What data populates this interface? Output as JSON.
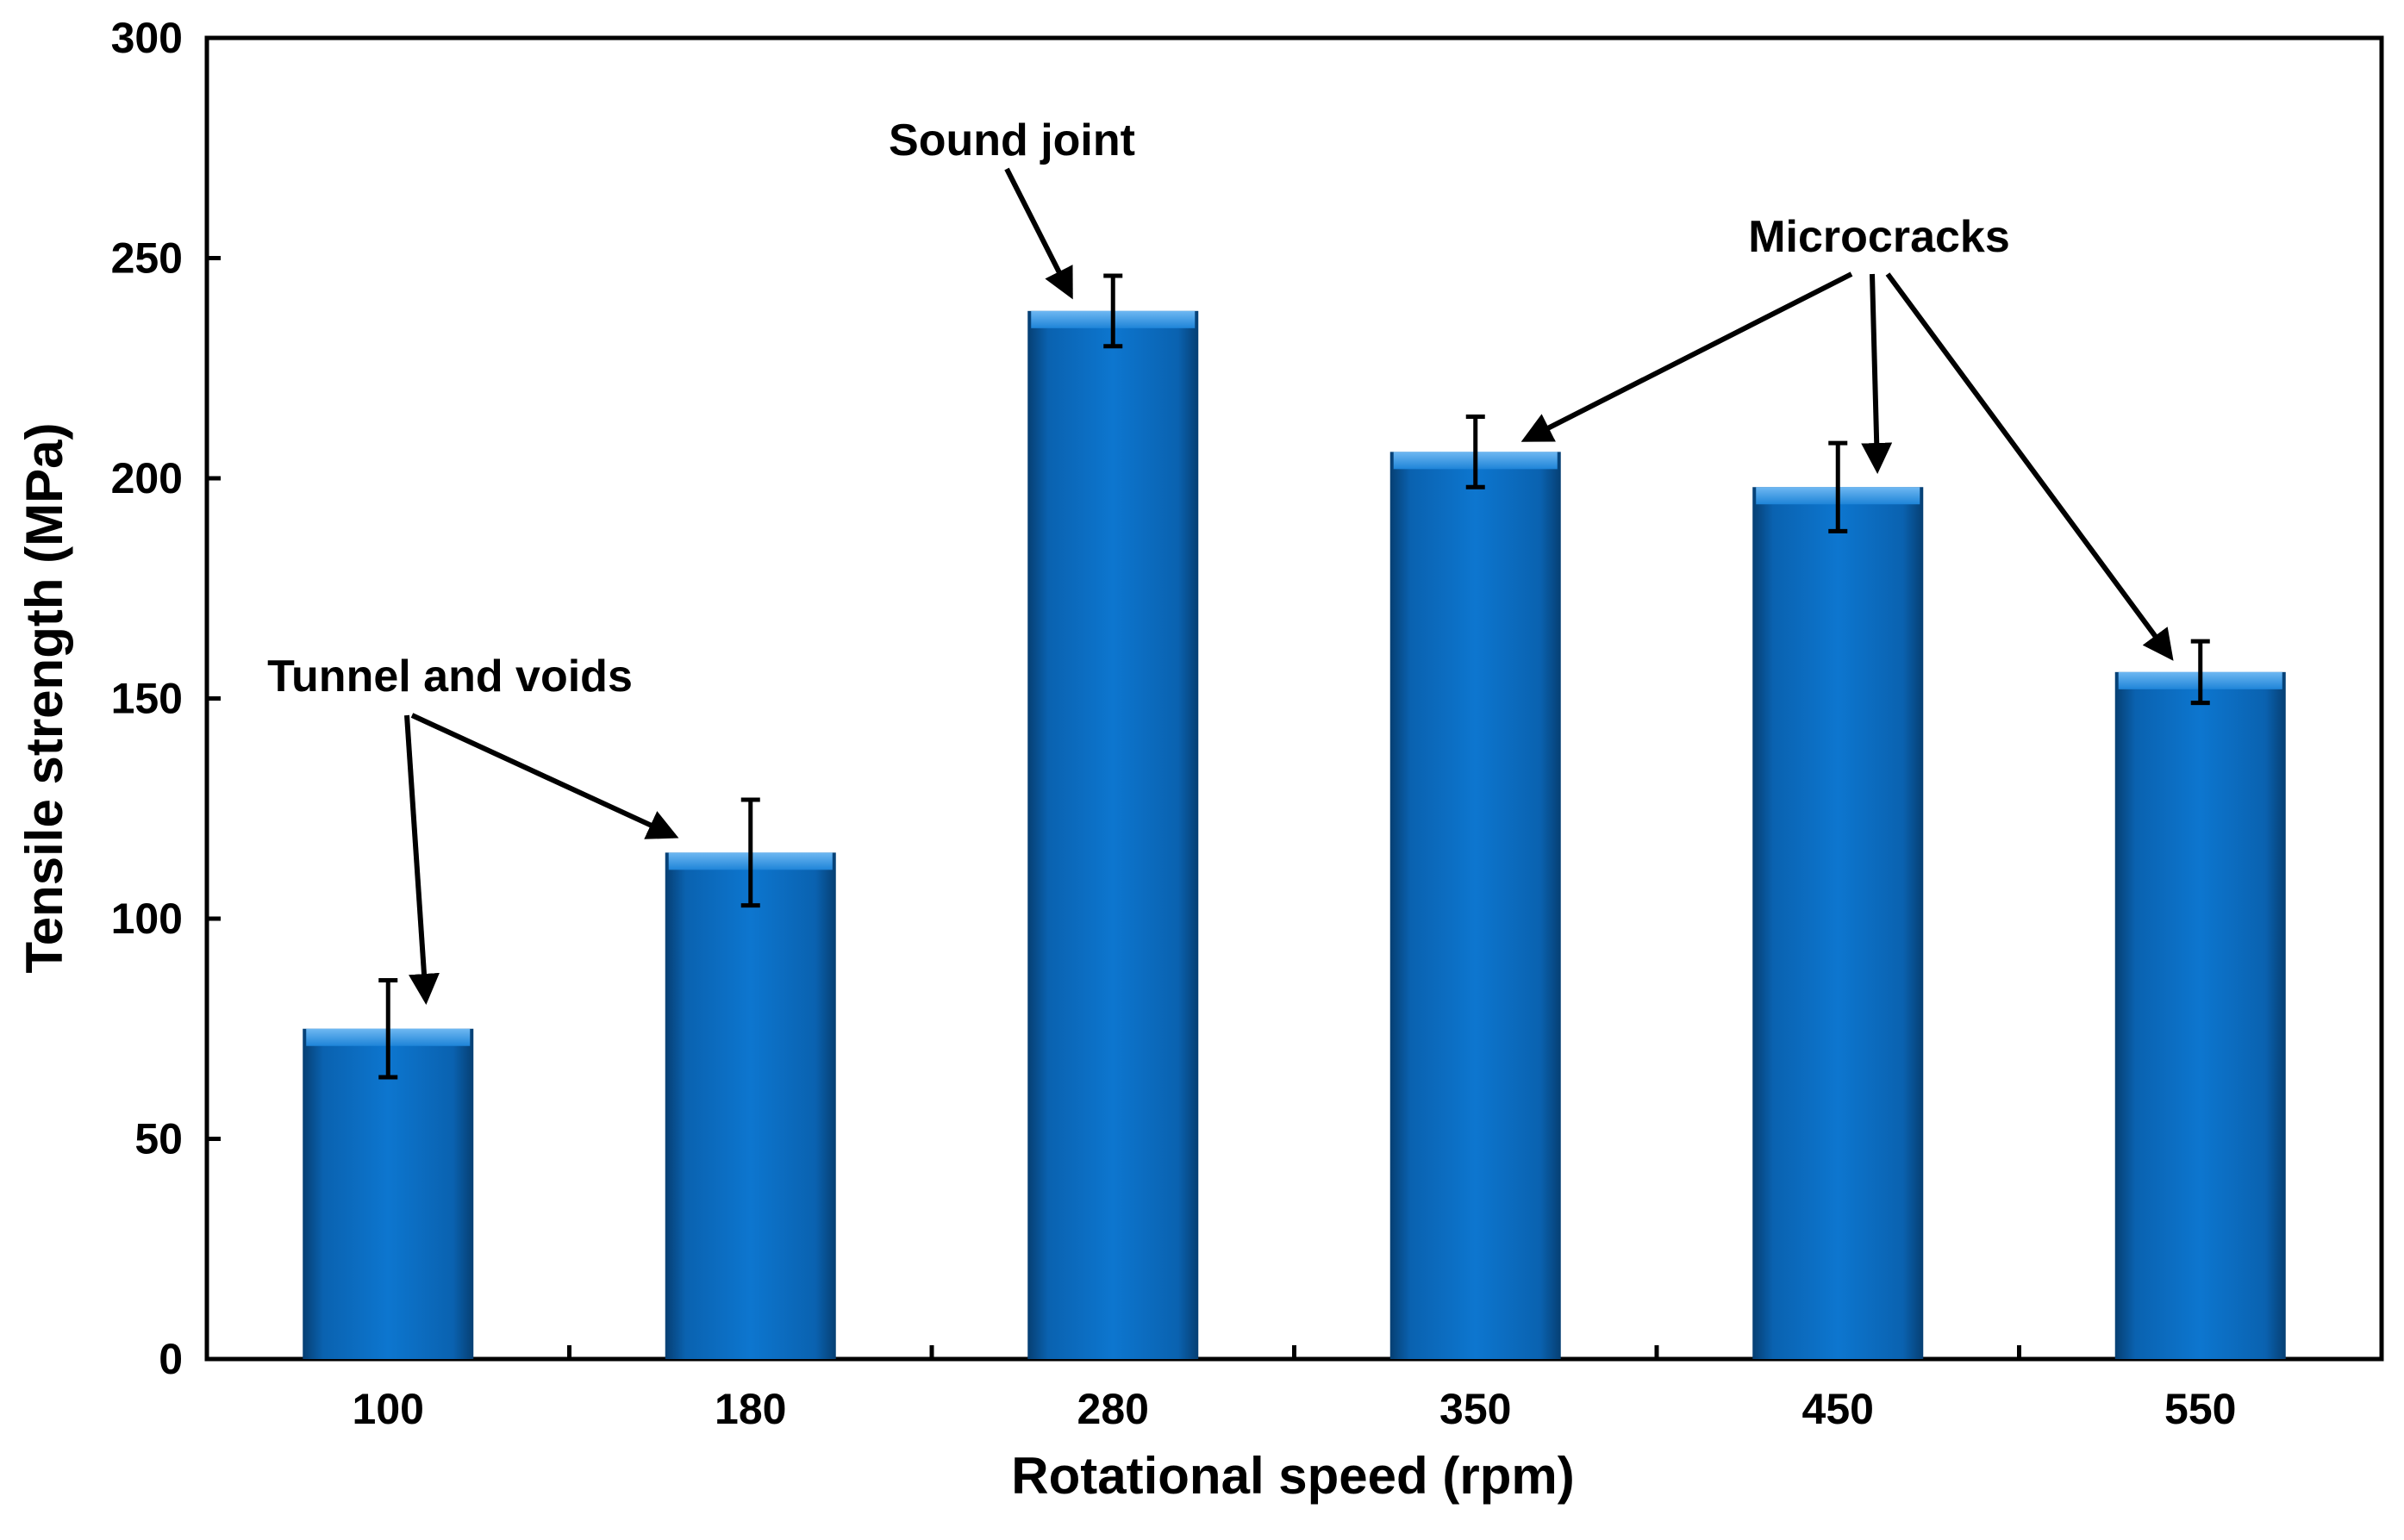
{
  "chart_data": {
    "type": "bar",
    "title": "",
    "xlabel": "Rotational speed (rpm)",
    "ylabel": "Tensile strength (MPa)",
    "categories": [
      "100",
      "180",
      "280",
      "350",
      "450",
      "550"
    ],
    "values": [
      75,
      115,
      238,
      206,
      198,
      156
    ],
    "error": [
      11,
      12,
      8,
      8,
      10,
      7
    ],
    "ylim": [
      0,
      300
    ],
    "yticks": [
      "0",
      "50",
      "100",
      "150",
      "200",
      "250",
      "300"
    ],
    "grid": false,
    "bar_color": "#0b6fc2",
    "annotations": [
      {
        "text": "Tunnel and voids",
        "targets": [
          "100",
          "180"
        ]
      },
      {
        "text": "Sound joint",
        "targets": [
          "280"
        ]
      },
      {
        "text": "Microcracks",
        "targets": [
          "350",
          "450",
          "550"
        ]
      }
    ]
  }
}
